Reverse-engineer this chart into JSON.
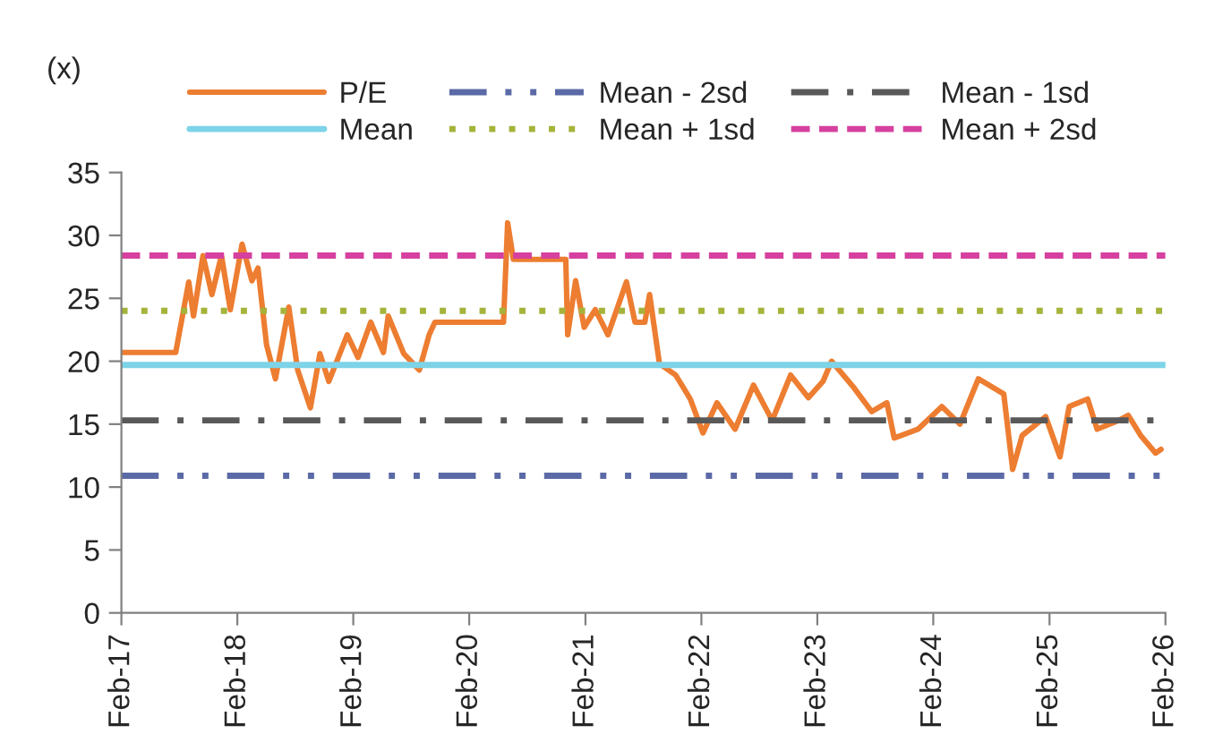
{
  "chart_data": {
    "type": "line",
    "ylabel": "(x)",
    "xlim": [
      "2017-02",
      "2026-02"
    ],
    "xticks": [
      {
        "value": "2017-02",
        "label": "Feb-17"
      },
      {
        "value": "2018-02",
        "label": "Feb-18"
      },
      {
        "value": "2019-02",
        "label": "Feb-19"
      },
      {
        "value": "2020-02",
        "label": "Feb-20"
      },
      {
        "value": "2021-02",
        "label": "Feb-21"
      },
      {
        "value": "2022-02",
        "label": "Feb-22"
      },
      {
        "value": "2023-02",
        "label": "Feb-23"
      },
      {
        "value": "2024-02",
        "label": "Feb-24"
      },
      {
        "value": "2025-02",
        "label": "Feb-25"
      },
      {
        "value": "2026-02",
        "label": "Feb-26"
      }
    ],
    "ylim": [
      0,
      35
    ],
    "yticks": [
      0,
      5,
      10,
      15,
      20,
      25,
      30,
      35
    ],
    "grid": false,
    "legend": "top",
    "marker": "none",
    "series": [
      {
        "name": "P/E",
        "color": "#ed7d31",
        "line_style": "solid",
        "x": [
          "2017-02-01",
          "2017-07-22",
          "2017-09-01",
          "2017-09-16",
          "2017-10-16",
          "2017-11-13",
          "2017-12-13",
          "2018-01-10",
          "2018-02-16",
          "2018-03-19",
          "2018-04-07",
          "2018-05-04",
          "2018-06-01",
          "2018-07-13",
          "2018-08-10",
          "2018-09-19",
          "2018-10-19",
          "2018-11-16",
          "2019-01-13",
          "2019-02-16",
          "2019-03-28",
          "2019-05-07",
          "2019-05-22",
          "2019-07-10",
          "2019-08-28",
          "2019-09-28",
          "2019-10-16",
          "2020-05-19",
          "2020-06-01",
          "2020-06-19",
          "2020-12-01",
          "2020-12-07",
          "2021-01-01",
          "2021-01-28",
          "2021-03-04",
          "2021-04-13",
          "2021-06-10",
          "2021-07-07",
          "2021-08-07",
          "2021-08-22",
          "2021-09-22",
          "2021-11-12",
          "2021-12-28",
          "2022-02-06",
          "2022-03-22",
          "2022-05-18",
          "2022-07-15",
          "2022-09-12",
          "2022-11-09",
          "2023-01-04",
          "2023-02-19",
          "2023-03-18",
          "2023-05-27",
          "2023-07-22",
          "2023-09-08",
          "2023-10-01",
          "2023-12-15",
          "2024-02-28",
          "2024-04-25",
          "2024-06-22",
          "2024-09-10",
          "2024-10-08",
          "2024-11-07",
          "2025-01-20",
          "2025-03-06",
          "2025-04-04",
          "2025-06-01",
          "2025-07-01",
          "2025-09-07",
          "2025-10-07",
          "2025-11-15",
          "2026-01-01",
          "2026-01-18"
        ],
        "values": [
          20.7,
          20.7,
          26.3,
          23.6,
          28.4,
          25.3,
          28.4,
          24.1,
          29.3,
          26.4,
          27.4,
          21.3,
          18.6,
          24.3,
          19.3,
          16.3,
          20.6,
          18.4,
          22.1,
          20.3,
          23.1,
          20.7,
          23.6,
          20.6,
          19.3,
          22.1,
          23.1,
          23.1,
          31.0,
          28.1,
          28.1,
          22.1,
          26.4,
          22.7,
          24.1,
          22.1,
          26.3,
          23.1,
          23.1,
          25.3,
          19.8,
          18.9,
          17.0,
          14.3,
          16.7,
          14.6,
          18.1,
          15.3,
          18.9,
          17.1,
          18.4,
          20.0,
          17.9,
          16.0,
          16.7,
          13.9,
          14.6,
          16.4,
          15.0,
          18.6,
          17.4,
          11.4,
          14.1,
          15.6,
          12.4,
          16.4,
          17.0,
          14.6,
          15.3,
          15.7,
          14.1,
          12.7,
          13.0
        ]
      },
      {
        "name": "Mean - 2sd",
        "color": "#5b6aa6",
        "line_style": "dashdotdot",
        "x": [
          "2017-02",
          "2026-02"
        ],
        "values": [
          10.9,
          10.9
        ]
      },
      {
        "name": "Mean - 1sd",
        "color": "#595959",
        "line_style": "dashdot",
        "x": [
          "2017-02",
          "2026-02"
        ],
        "values": [
          15.3,
          15.3
        ]
      },
      {
        "name": "Mean",
        "color": "#7dd3e8",
        "line_style": "solid",
        "x": [
          "2017-02",
          "2026-02"
        ],
        "values": [
          19.7,
          19.7
        ]
      },
      {
        "name": "Mean + 1sd",
        "color": "#a5b33a",
        "line_style": "dotted",
        "x": [
          "2017-02",
          "2026-02"
        ],
        "values": [
          24.0,
          24.0
        ]
      },
      {
        "name": "Mean + 2sd",
        "color": "#d6409f",
        "line_style": "dashed",
        "x": [
          "2017-02",
          "2026-02"
        ],
        "values": [
          28.4,
          28.4
        ]
      }
    ]
  }
}
